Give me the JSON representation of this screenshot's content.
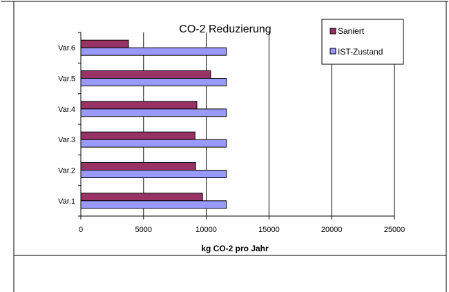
{
  "chart_data": {
    "type": "bar",
    "orientation": "horizontal",
    "title": "CO-2 Reduzierung",
    "xlabel": "kg CO-2 pro Jahr",
    "ylabel": "",
    "categories": [
      "Var.1",
      "Var.2",
      "Var.3",
      "Var.4",
      "Var.5",
      "Var.6"
    ],
    "xlim": [
      0,
      25000
    ],
    "x_ticks": [
      0,
      5000,
      10000,
      15000,
      20000,
      25000
    ],
    "series": [
      {
        "name": "Saniert",
        "color": "#993366",
        "values": [
          9700,
          9150,
          9100,
          9250,
          10350,
          3800
        ]
      },
      {
        "name": "IST-Zustand",
        "color": "#9999FF",
        "values": [
          11600,
          11600,
          11600,
          11600,
          11600,
          11600
        ]
      }
    ],
    "grid": "vertical major gridlines",
    "legend_position": "top-right",
    "plot_background": "#ffffff"
  }
}
